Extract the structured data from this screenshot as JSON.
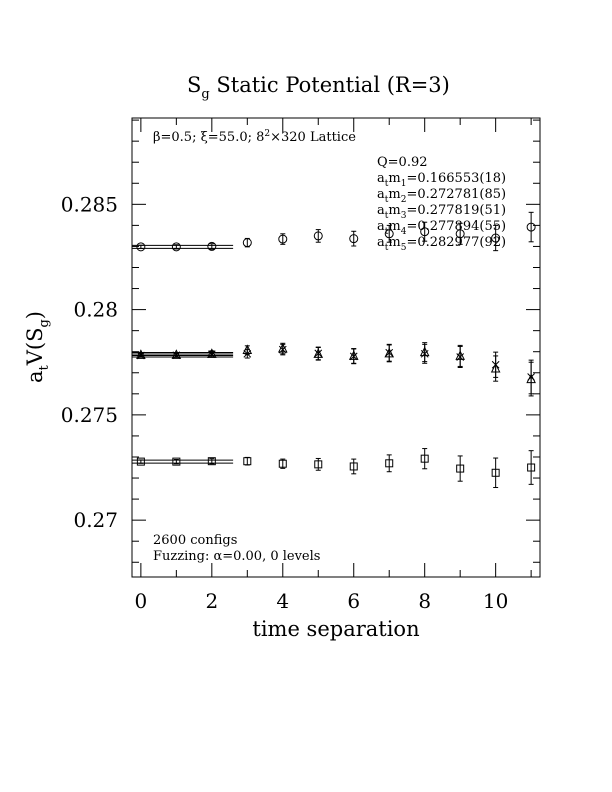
{
  "chart_data": {
    "type": "scatter",
    "title_main": "S",
    "title_sub": "g",
    "title_rest": " Static Potential (R=3)",
    "xlabel": "time separation",
    "ylabel_parts": [
      "a",
      "t",
      "V(S",
      "g",
      ")"
    ],
    "xlim": [
      -0.25,
      11.25
    ],
    "ylim": [
      0.2673,
      0.2891
    ],
    "x_ticks": [
      0,
      2,
      4,
      6,
      8,
      10
    ],
    "x_tick_labels": [
      "0",
      "2",
      "4",
      "6",
      "8",
      "10"
    ],
    "y_ticks": [
      0.27,
      0.275,
      0.28,
      0.285
    ],
    "y_tick_labels": [
      "0.27",
      "0.275",
      "0.28",
      "0.285"
    ],
    "lattice_note": {
      "beta": "β=0.5; ",
      "xi": "ξ=55.0; 8",
      "exp": "2",
      "rest": "×320 Lattice"
    },
    "fit_info": {
      "q": "Q=0.92",
      "masses": [
        {
          "prefix": "a",
          "sub1": "t",
          "mid": "m",
          "sub2": "1",
          "value": "=0.166553(18)"
        },
        {
          "prefix": "a",
          "sub1": "t",
          "mid": "m",
          "sub2": "2",
          "value": "=0.272781(85)"
        },
        {
          "prefix": "a",
          "sub1": "t",
          "mid": "m",
          "sub2": "3",
          "value": "=0.277819(51)"
        },
        {
          "prefix": "a",
          "sub1": "t",
          "mid": "m",
          "sub2": "4",
          "value": "=0.277894(55)"
        },
        {
          "prefix": "a",
          "sub1": "t",
          "mid": "m",
          "sub2": "5",
          "value": "=0.282977(92)"
        }
      ]
    },
    "footer_notes": {
      "configs": "2600 configs",
      "fuzzing": "Fuzzing: α=0.00, 0 levels"
    },
    "fit_lines": [
      {
        "y": 0.27278,
        "x0": -0.25,
        "x1": 2.6
      },
      {
        "y": 0.27782,
        "x0": -0.25,
        "x1": 2.6
      },
      {
        "y": 0.27789,
        "x0": -0.25,
        "x1": 2.6
      },
      {
        "y": 0.28298,
        "x0": -0.25,
        "x1": 2.6
      }
    ],
    "series": [
      {
        "marker": "square",
        "points": [
          {
            "x": 0,
            "y": 0.27278,
            "err": 8e-05
          },
          {
            "x": 1,
            "y": 0.27278,
            "err": 0.0001
          },
          {
            "x": 2,
            "y": 0.2728,
            "err": 0.00012
          },
          {
            "x": 3,
            "y": 0.2728,
            "err": 0.00018
          },
          {
            "x": 4,
            "y": 0.27268,
            "err": 0.00022
          },
          {
            "x": 5,
            "y": 0.27265,
            "err": 0.00028
          },
          {
            "x": 6,
            "y": 0.27255,
            "err": 0.00035
          },
          {
            "x": 7,
            "y": 0.2727,
            "err": 0.0004
          },
          {
            "x": 8,
            "y": 0.27292,
            "err": 0.00048
          },
          {
            "x": 9,
            "y": 0.27245,
            "err": 0.0006
          },
          {
            "x": 10,
            "y": 0.27225,
            "err": 0.0007
          },
          {
            "x": 11,
            "y": 0.2725,
            "err": 0.0008
          }
        ]
      },
      {
        "marker": "triangle",
        "points": [
          {
            "x": 0,
            "y": 0.27785,
            "err": 8e-05
          },
          {
            "x": 1,
            "y": 0.27785,
            "err": 0.0001
          },
          {
            "x": 2,
            "y": 0.2779,
            "err": 0.00014
          },
          {
            "x": 3,
            "y": 0.27808,
            "err": 0.0002
          },
          {
            "x": 4,
            "y": 0.27815,
            "err": 0.00025
          },
          {
            "x": 5,
            "y": 0.2779,
            "err": 0.0003
          },
          {
            "x": 6,
            "y": 0.2778,
            "err": 0.00035
          },
          {
            "x": 7,
            "y": 0.27792,
            "err": 0.0004
          },
          {
            "x": 8,
            "y": 0.27798,
            "err": 0.00045
          },
          {
            "x": 9,
            "y": 0.2778,
            "err": 0.0005
          },
          {
            "x": 10,
            "y": 0.2772,
            "err": 0.0006
          },
          {
            "x": 11,
            "y": 0.2767,
            "err": 0.0008
          }
        ]
      },
      {
        "marker": "cross",
        "points": [
          {
            "x": 0,
            "y": 0.27782,
            "err": 8e-05
          },
          {
            "x": 1,
            "y": 0.27783,
            "err": 0.0001
          },
          {
            "x": 2,
            "y": 0.27788,
            "err": 0.00014
          },
          {
            "x": 3,
            "y": 0.2779,
            "err": 0.0002
          },
          {
            "x": 4,
            "y": 0.2781,
            "err": 0.00025
          },
          {
            "x": 5,
            "y": 0.27792,
            "err": 0.0003
          },
          {
            "x": 6,
            "y": 0.27778,
            "err": 0.00035
          },
          {
            "x": 7,
            "y": 0.27795,
            "err": 0.0004
          },
          {
            "x": 8,
            "y": 0.2779,
            "err": 0.00045
          },
          {
            "x": 9,
            "y": 0.27775,
            "err": 0.0005
          },
          {
            "x": 10,
            "y": 0.27738,
            "err": 0.0006
          },
          {
            "x": 11,
            "y": 0.2768,
            "err": 0.0008
          }
        ]
      },
      {
        "marker": "circle",
        "points": [
          {
            "x": 0,
            "y": 0.28298,
            "err": 8e-05
          },
          {
            "x": 1,
            "y": 0.28298,
            "err": 0.0001
          },
          {
            "x": 2,
            "y": 0.283,
            "err": 0.00013
          },
          {
            "x": 3,
            "y": 0.28318,
            "err": 0.0002
          },
          {
            "x": 4,
            "y": 0.28335,
            "err": 0.00025
          },
          {
            "x": 5,
            "y": 0.2835,
            "err": 0.0003
          },
          {
            "x": 6,
            "y": 0.28337,
            "err": 0.00035
          },
          {
            "x": 7,
            "y": 0.2836,
            "err": 0.0004
          },
          {
            "x": 8,
            "y": 0.2837,
            "err": 0.00045
          },
          {
            "x": 9,
            "y": 0.2836,
            "err": 0.0005
          },
          {
            "x": 10,
            "y": 0.2834,
            "err": 0.0006
          },
          {
            "x": 11,
            "y": 0.28392,
            "err": 0.0007
          }
        ]
      }
    ]
  }
}
